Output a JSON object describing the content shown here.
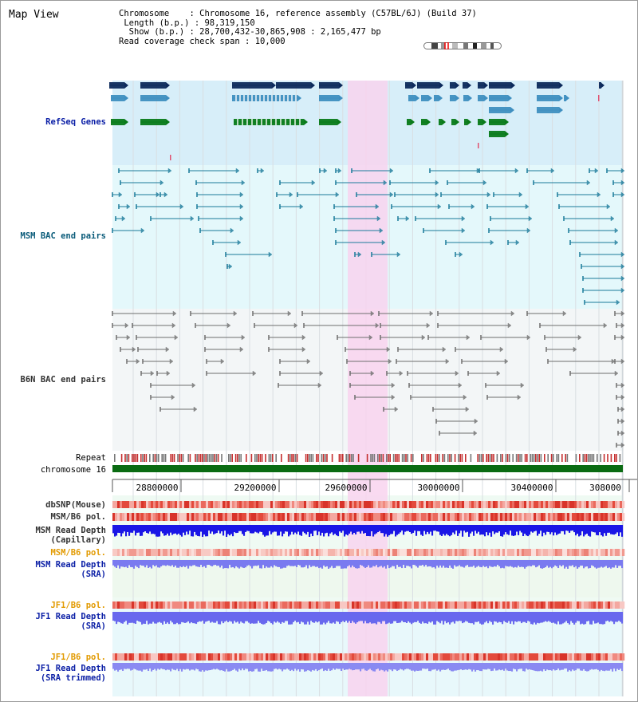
{
  "view_title": "Map View",
  "info": {
    "chromosome_key": "Chromosome",
    "chromosome_value": "Chromosome 16, reference assembly (C57BL/6J) (Build 37)",
    "length_key": "Length (b.p.)",
    "length_value": "98,319,150",
    "show_key": "Show (b.p.)",
    "show_value": "28,700,432-30,865,908 : 2,165,477 bp",
    "span_key": "Read coverage check span",
    "span_value": "10,000"
  },
  "tracks": {
    "refseq_label": "RefSeq Genes",
    "msm_bac_label": "MSM BAC end pairs",
    "b6n_bac_label": "B6N BAC end pairs",
    "repeat_label": "Repeat",
    "chromosome_label": "chromosome 16",
    "dbsnp_label": "dbSNP(Mouse)",
    "msm_b6_pol_label": "MSM/B6 pol.",
    "msm_depth_cap_label_1": "MSM Read Depth",
    "msm_depth_cap_label_2": "(Capillary)",
    "msm_b6_pol2_label": "MSM/B6 pol.",
    "msm_depth_sra_label_1": "MSM Read Depth",
    "msm_depth_sra_label_2": "(SRA)",
    "jf1_b6_pol_label": "JF1/B6 pol.",
    "jf1_depth_sra_label_1": "JF1 Read Depth",
    "jf1_depth_sra_label_2": "(SRA)",
    "jf1_b6_pol2_label": "JF1/B6 pol.",
    "jf1_depth_trim_label_1": "JF1 Read Depth",
    "jf1_depth_trim_label_2": "(SRA trimmed)"
  },
  "axis": {
    "ticks": [
      "28800000",
      "29200000",
      "29600000",
      "30000000",
      "30400000",
      "308000"
    ]
  },
  "colors": {
    "refseq_bg": "#d7eef9",
    "msm_bg": "#e4f8fb",
    "b6n_bg": "#f3f6f7",
    "highlight": "#f8d4ee",
    "chromosome_bar": "#0a6b12",
    "label_blue": "#0b1fa6",
    "label_orange": "#e29a00",
    "depth_blue": "#1a16e6",
    "depth_light": "#7a7af0"
  }
}
